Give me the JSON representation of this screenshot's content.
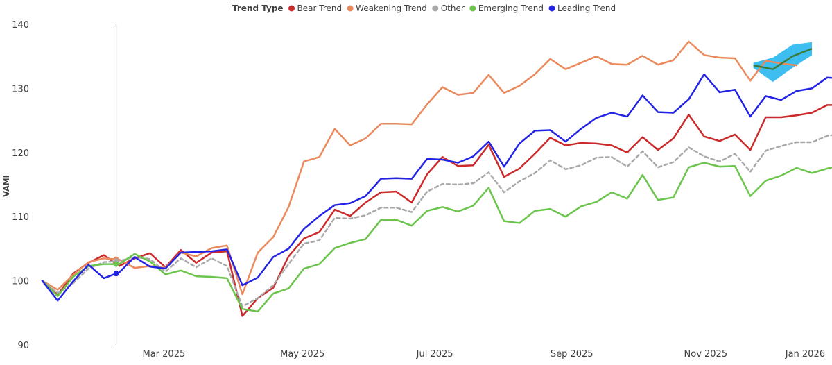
{
  "chart_data": {
    "type": "line",
    "legend": {
      "title": "Trend Type",
      "placement": "top-center",
      "items": [
        {
          "label": "Bear Trend",
          "color": "#cc2a2a"
        },
        {
          "label": "Weakening Trend",
          "color": "#ea8a5c"
        },
        {
          "label": "Other",
          "color": "#a9a9a9"
        },
        {
          "label": "Emerging Trend",
          "color": "#6bc44b"
        },
        {
          "label": "Leading Trend",
          "color": "#2323e6"
        }
      ]
    },
    "ylabel": "VAMI",
    "ylim": [
      90,
      140
    ],
    "yticks": [
      "90",
      "100",
      "110",
      "120",
      "130",
      "140"
    ],
    "x_tick_labels": [
      "Mar 2025",
      "May 2025",
      "Jul 2025",
      "Sep 2025",
      "Nov 2025",
      "Jan 2026"
    ],
    "x_domain": [
      0,
      50
    ],
    "x_tick_positions": [
      7.9,
      16.9,
      25.5,
      34.4,
      43.1,
      50
    ],
    "grid": false,
    "marker_line_x": 4.8,
    "series": [
      {
        "name": "Bear Trend",
        "color": "#cc2a2a",
        "dashed": false,
        "values": [
          100,
          97.8,
          101.1,
          102.8,
          104.0,
          102.3,
          103.5,
          104.3,
          102.1,
          104.8,
          102.8,
          104.4,
          104.6,
          94.5,
          97.3,
          98.9,
          103.8,
          106.6,
          107.6,
          111.1,
          110.1,
          112.2,
          113.8,
          113.9,
          112.2,
          116.6,
          119.3,
          117.9,
          118.0,
          121.2,
          116.2,
          117.5,
          119.8,
          122.3,
          121.1,
          121.5,
          121.4,
          121.1,
          120.0,
          122.4,
          120.4,
          122.2,
          125.9,
          122.5,
          121.8,
          122.8,
          120.4,
          125.5,
          125.5,
          125.8,
          126.2,
          127.4,
          127.4
        ]
      },
      {
        "name": "Weakening Trend",
        "color": "#ea8a5c",
        "dashed": false,
        "values": [
          100,
          98.6,
          100.9,
          102.9,
          103.5,
          103.3,
          102.0,
          102.3,
          102.0,
          104.4,
          103.8,
          105.1,
          105.5,
          97.9,
          104.4,
          106.8,
          111.5,
          118.6,
          119.3,
          123.7,
          121.1,
          122.2,
          124.5,
          124.5,
          124.4,
          127.5,
          130.2,
          129.0,
          129.3,
          132.1,
          129.3,
          130.4,
          132.2,
          134.6,
          133.0,
          134.0,
          135.0,
          133.8,
          133.7,
          135.1,
          133.7,
          134.4,
          137.3,
          135.2,
          134.8,
          134.7,
          131.2,
          134.3,
          133.9,
          133.6
        ]
      },
      {
        "name": "Other",
        "color": "#a9a9a9",
        "dashed": true,
        "values": [
          100,
          98.1,
          99.6,
          101.9,
          102.9,
          103.1,
          103.7,
          103.4,
          101.4,
          103.5,
          102.1,
          103.5,
          102.3,
          96.0,
          97.3,
          99.3,
          102.6,
          105.8,
          106.3,
          109.8,
          109.7,
          110.2,
          111.4,
          111.4,
          110.7,
          113.9,
          115.1,
          115.0,
          115.2,
          116.9,
          113.8,
          115.5,
          116.8,
          118.8,
          117.4,
          118.0,
          119.2,
          119.3,
          117.8,
          120.2,
          117.7,
          118.5,
          120.8,
          119.4,
          118.6,
          119.8,
          117.0,
          120.3,
          121.0,
          121.6,
          121.6,
          122.6,
          122.9
        ]
      },
      {
        "name": "Emerging Trend",
        "color": "#6bc44b",
        "dashed": false,
        "values": [
          100,
          97.6,
          100.6,
          102.3,
          102.6,
          102.6,
          104.2,
          103.0,
          101.0,
          101.6,
          100.7,
          100.6,
          100.4,
          95.6,
          95.2,
          98.0,
          98.8,
          101.9,
          102.6,
          105.1,
          105.9,
          106.5,
          109.5,
          109.5,
          108.6,
          110.9,
          111.5,
          110.8,
          111.7,
          114.5,
          109.3,
          109.0,
          110.9,
          111.2,
          110.0,
          111.6,
          112.3,
          113.8,
          112.8,
          116.5,
          112.6,
          113.0,
          117.7,
          118.4,
          117.8,
          117.9,
          113.2,
          115.6,
          116.4,
          117.6,
          116.8,
          117.5,
          118.1
        ]
      },
      {
        "name": "Leading Trend",
        "color": "#2323e6",
        "dashed": false,
        "values": [
          100,
          96.9,
          99.9,
          102.5,
          100.4,
          101.3,
          103.7,
          102.2,
          101.9,
          104.4,
          104.5,
          104.6,
          104.9,
          99.3,
          100.5,
          103.7,
          105.0,
          108.1,
          110.1,
          111.8,
          112.1,
          113.2,
          115.9,
          116.0,
          115.9,
          119.0,
          118.9,
          118.4,
          119.4,
          121.7,
          117.8,
          121.4,
          123.4,
          123.5,
          121.7,
          123.7,
          125.4,
          126.2,
          125.6,
          128.9,
          126.3,
          126.2,
          128.3,
          132.2,
          129.4,
          129.8,
          125.6,
          128.8,
          128.2,
          129.6,
          130.0,
          131.7,
          131.5
        ]
      }
    ],
    "forecast": {
      "color": "#3c7a3c",
      "band_color": "#29b6f0",
      "x_start": 46.2,
      "values": [
        133.6,
        133.0,
        135.0,
        136.2
      ],
      "upper": [
        134.0,
        134.8,
        136.8,
        137.2
      ],
      "lower": [
        133.2,
        131.0,
        133.2,
        135.2
      ]
    }
  }
}
